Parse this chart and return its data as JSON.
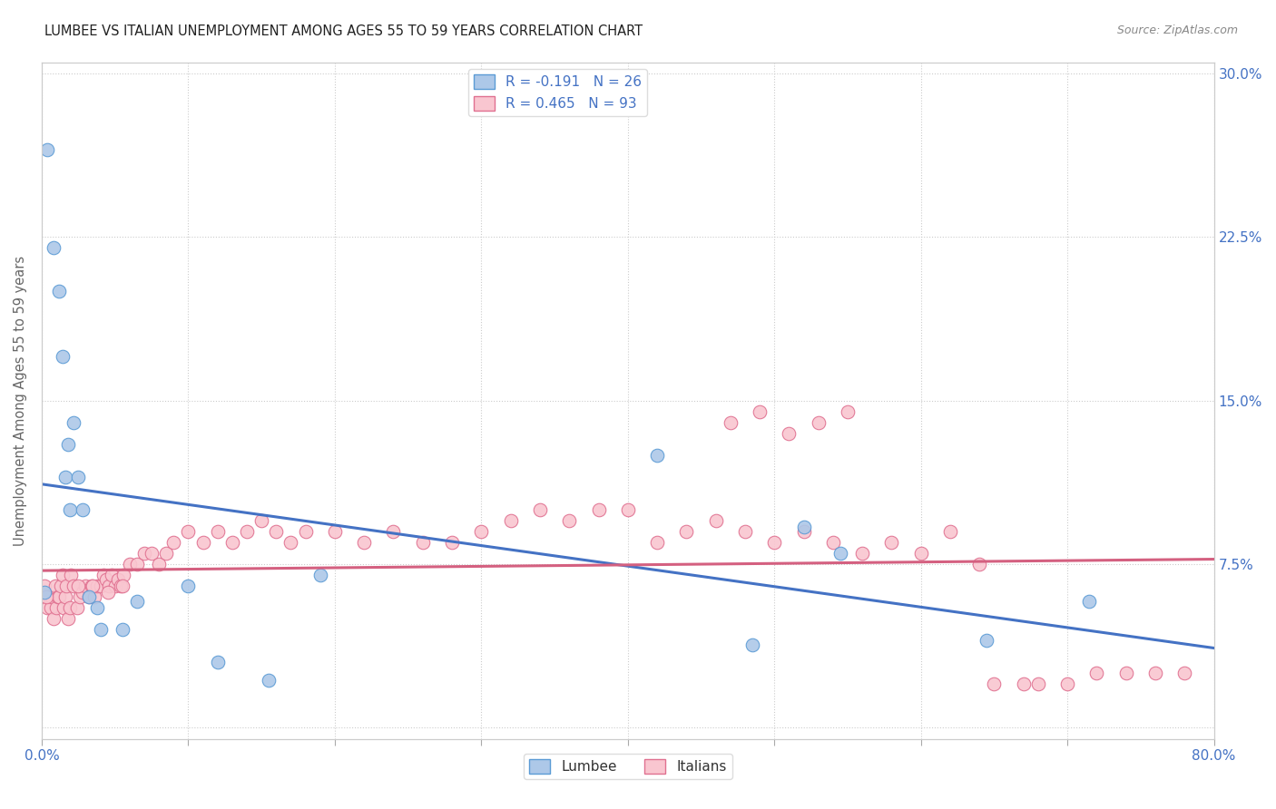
{
  "title": "LUMBEE VS ITALIAN UNEMPLOYMENT AMONG AGES 55 TO 59 YEARS CORRELATION CHART",
  "source": "Source: ZipAtlas.com",
  "ylabel": "Unemployment Among Ages 55 to 59 years",
  "xlim": [
    0.0,
    0.8
  ],
  "ylim": [
    -0.005,
    0.305
  ],
  "xtick_vals": [
    0.0,
    0.1,
    0.2,
    0.3,
    0.4,
    0.5,
    0.6,
    0.7,
    0.8
  ],
  "ytick_vals": [
    0.0,
    0.075,
    0.15,
    0.225,
    0.3
  ],
  "ytick_labels_right": [
    "",
    "7.5%",
    "15.0%",
    "22.5%",
    "30.0%"
  ],
  "lumbee_R": -0.191,
  "lumbee_N": 26,
  "italian_R": 0.465,
  "italian_N": 93,
  "lumbee_color": "#adc8e8",
  "lumbee_edge_color": "#5b9bd5",
  "lumbee_line_color": "#4472c4",
  "italian_color": "#f9c6d0",
  "italian_edge_color": "#e07090",
  "italian_line_color": "#d46080",
  "lumbee_x": [
    0.004,
    0.008,
    0.012,
    0.014,
    0.016,
    0.018,
    0.019,
    0.022,
    0.025,
    0.028,
    0.032,
    0.038,
    0.04,
    0.055,
    0.065,
    0.1,
    0.12,
    0.155,
    0.19,
    0.42,
    0.485,
    0.52,
    0.545,
    0.645,
    0.715,
    0.002
  ],
  "lumbee_y": [
    0.265,
    0.22,
    0.2,
    0.17,
    0.115,
    0.13,
    0.1,
    0.14,
    0.115,
    0.1,
    0.06,
    0.055,
    0.045,
    0.045,
    0.058,
    0.065,
    0.03,
    0.022,
    0.07,
    0.125,
    0.038,
    0.092,
    0.08,
    0.04,
    0.058,
    0.062
  ],
  "italian_x": [
    0.002,
    0.004,
    0.005,
    0.006,
    0.007,
    0.008,
    0.009,
    0.01,
    0.011,
    0.012,
    0.013,
    0.014,
    0.015,
    0.016,
    0.017,
    0.018,
    0.019,
    0.02,
    0.022,
    0.024,
    0.026,
    0.028,
    0.03,
    0.032,
    0.034,
    0.036,
    0.038,
    0.04,
    0.042,
    0.044,
    0.046,
    0.048,
    0.05,
    0.052,
    0.054,
    0.056,
    0.06,
    0.065,
    0.07,
    0.075,
    0.08,
    0.085,
    0.09,
    0.1,
    0.11,
    0.12,
    0.13,
    0.14,
    0.15,
    0.16,
    0.17,
    0.18,
    0.2,
    0.22,
    0.24,
    0.26,
    0.28,
    0.3,
    0.32,
    0.34,
    0.36,
    0.38,
    0.4,
    0.42,
    0.44,
    0.46,
    0.48,
    0.5,
    0.52,
    0.54,
    0.56,
    0.58,
    0.6,
    0.62,
    0.64,
    0.47,
    0.49,
    0.51,
    0.53,
    0.55,
    0.65,
    0.67,
    0.68,
    0.7,
    0.72,
    0.74,
    0.76,
    0.78,
    0.003,
    0.025,
    0.035,
    0.045,
    0.055
  ],
  "italian_y": [
    0.065,
    0.055,
    0.06,
    0.055,
    0.06,
    0.05,
    0.065,
    0.055,
    0.06,
    0.06,
    0.065,
    0.07,
    0.055,
    0.06,
    0.065,
    0.05,
    0.055,
    0.07,
    0.065,
    0.055,
    0.06,
    0.062,
    0.065,
    0.06,
    0.065,
    0.06,
    0.065,
    0.065,
    0.07,
    0.068,
    0.065,
    0.07,
    0.065,
    0.068,
    0.065,
    0.07,
    0.075,
    0.075,
    0.08,
    0.08,
    0.075,
    0.08,
    0.085,
    0.09,
    0.085,
    0.09,
    0.085,
    0.09,
    0.095,
    0.09,
    0.085,
    0.09,
    0.09,
    0.085,
    0.09,
    0.085,
    0.085,
    0.09,
    0.095,
    0.1,
    0.095,
    0.1,
    0.1,
    0.085,
    0.09,
    0.095,
    0.09,
    0.085,
    0.09,
    0.085,
    0.08,
    0.085,
    0.08,
    0.09,
    0.075,
    0.14,
    0.145,
    0.135,
    0.14,
    0.145,
    0.02,
    0.02,
    0.02,
    0.02,
    0.025,
    0.025,
    0.025,
    0.025,
    0.06,
    0.065,
    0.065,
    0.062,
    0.065
  ]
}
